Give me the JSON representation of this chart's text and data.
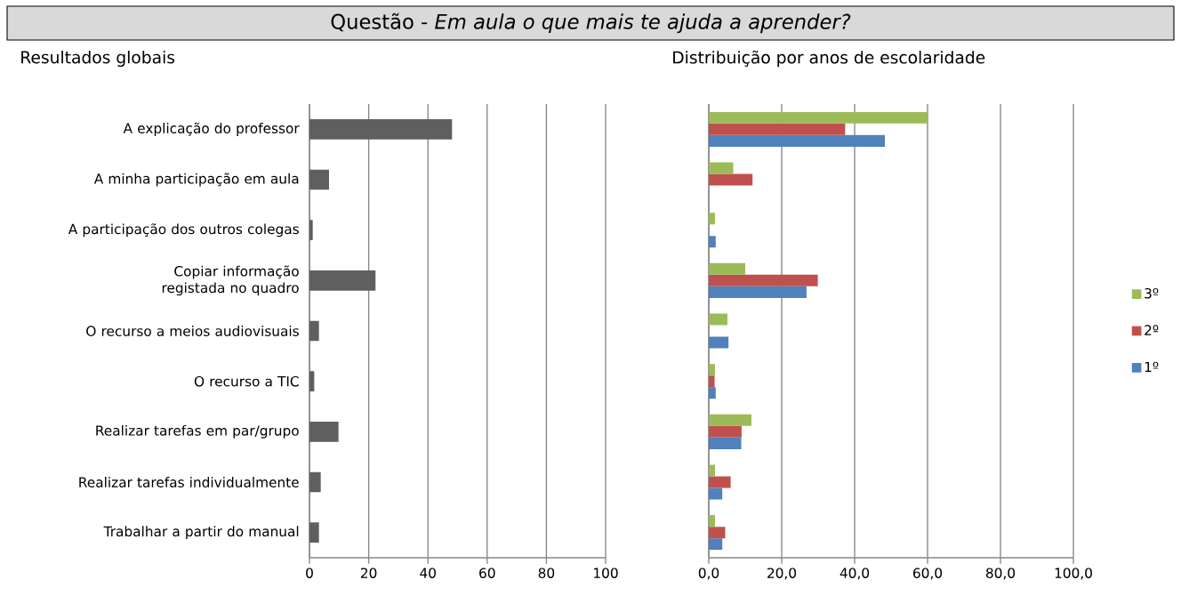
{
  "chart_data": [
    {
      "type": "bar",
      "orientation": "horizontal",
      "title": "Questão - *Em aula o que mais te ajuda a aprender?*",
      "subtitle": "Resultados globais",
      "categories": [
        "A explicação do professor",
        "A minha participação em aula",
        "A participação dos outros colegas",
        "Copiar informação registada no quadro",
        "O recurso a meios audiovisuais",
        "O recurso a TIC",
        "Realizar tarefas  em par/grupo",
        "Realizar tarefas individualmente",
        "Trabalhar a partir do manual"
      ],
      "values": [
        48.2,
        6.6,
        1.1,
        22.3,
        3.2,
        1.6,
        9.8,
        3.8,
        3.2
      ],
      "color": "#5f5f5f",
      "xlim": [
        0,
        100
      ],
      "xticks": [
        0,
        20,
        40,
        60,
        80,
        100
      ],
      "grid": "x"
    },
    {
      "type": "bar",
      "orientation": "horizontal",
      "title": "Distribuição por anos de escolaridade",
      "categories": [
        null,
        null,
        null,
        null,
        null,
        null,
        null,
        null,
        null
      ],
      "series": [
        {
          "name": "1º",
          "color": "#4f81bd",
          "values": [
            48.3,
            null,
            1.9,
            26.8,
            5.4,
            1.9,
            8.9,
            3.7,
            3.7
          ]
        },
        {
          "name": "2º",
          "color": "#c0504d",
          "values": [
            37.4,
            12.0,
            null,
            29.9,
            null,
            1.6,
            9.0,
            6.0,
            4.5
          ]
        },
        {
          "name": "3º",
          "color": "#9bbb59",
          "values": [
            60.1,
            6.7,
            1.7,
            10.0,
            5.1,
            1.7,
            11.7,
            1.7,
            1.7
          ]
        }
      ],
      "xlim": [
        0,
        100
      ],
      "xticks": [
        {
          "value": 0,
          "label": "0,0"
        },
        {
          "value": 20,
          "label": "20,0"
        },
        {
          "value": 40,
          "label": "40,0"
        },
        {
          "value": 60,
          "label": "60,0"
        },
        {
          "value": 80,
          "label": "80,0"
        },
        {
          "value": 100,
          "label": "100,0"
        }
      ],
      "grid": "x",
      "legend": "right",
      "tick_labels": "x"
    }
  ]
}
